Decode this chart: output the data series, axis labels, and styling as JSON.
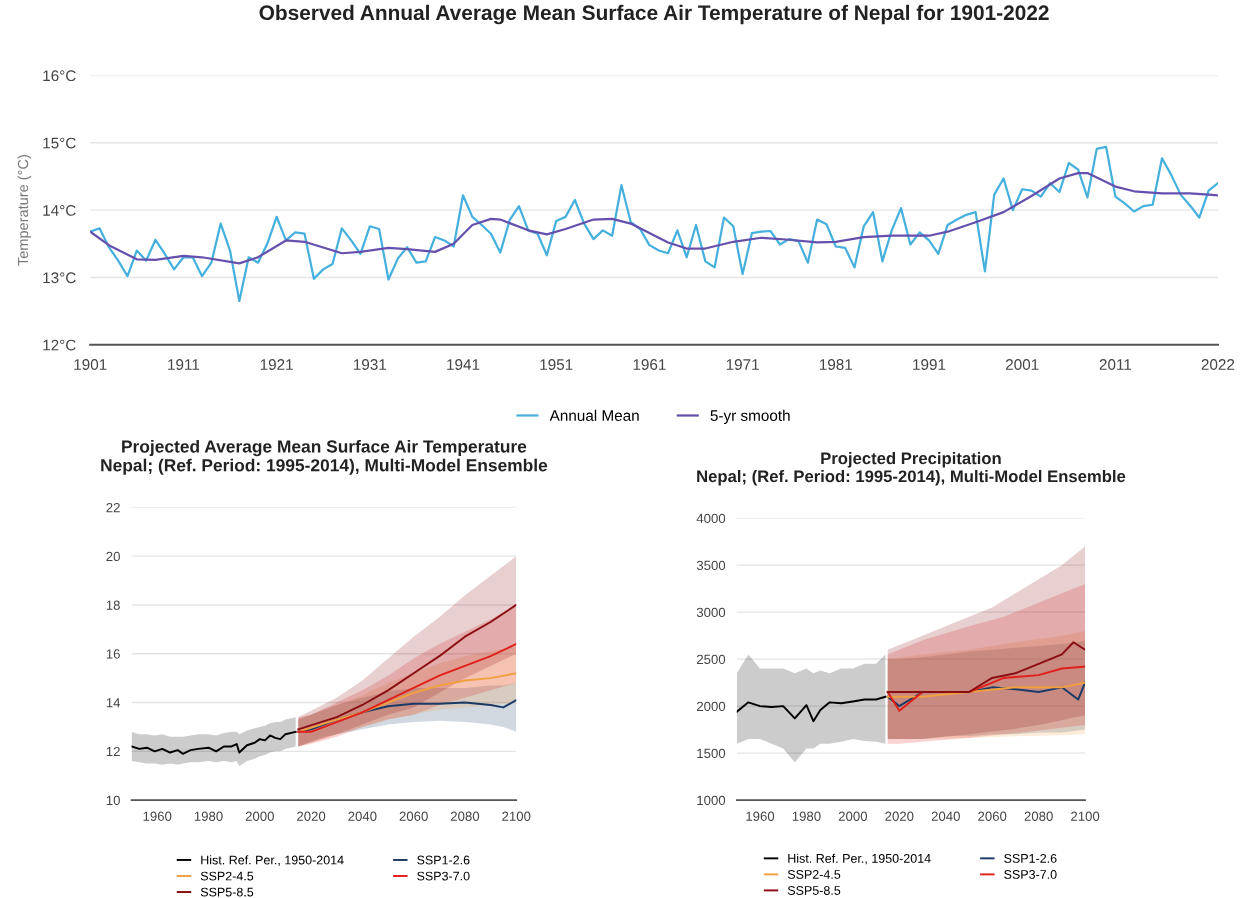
{
  "chart_data": [
    {
      "type": "line",
      "title": "Observed Annual Average Mean Surface Air Temperature of Nepal for 1901-2022",
      "ylabel": "Temperature (°C)",
      "x": [
        1901,
        1902,
        1903,
        1904,
        1905,
        1906,
        1907,
        1908,
        1909,
        1910,
        1911,
        1912,
        1913,
        1914,
        1915,
        1916,
        1917,
        1918,
        1919,
        1920,
        1921,
        1922,
        1923,
        1924,
        1925,
        1926,
        1927,
        1928,
        1929,
        1930,
        1931,
        1932,
        1933,
        1934,
        1935,
        1936,
        1937,
        1938,
        1939,
        1940,
        1941,
        1942,
        1943,
        1944,
        1945,
        1946,
        1947,
        1948,
        1949,
        1950,
        1951,
        1952,
        1953,
        1954,
        1955,
        1956,
        1957,
        1958,
        1959,
        1960,
        1961,
        1962,
        1963,
        1964,
        1965,
        1966,
        1967,
        1968,
        1969,
        1970,
        1971,
        1972,
        1973,
        1974,
        1975,
        1976,
        1977,
        1978,
        1979,
        1980,
        1981,
        1982,
        1983,
        1984,
        1985,
        1986,
        1987,
        1988,
        1989,
        1990,
        1991,
        1992,
        1993,
        1994,
        1995,
        1996,
        1997,
        1998,
        1999,
        2000,
        2001,
        2002,
        2003,
        2004,
        2005,
        2006,
        2007,
        2008,
        2009,
        2010,
        2011,
        2012,
        2013,
        2014,
        2015,
        2016,
        2017,
        2018,
        2019,
        2020,
        2021,
        2022
      ],
      "series": [
        {
          "name": "Annual Mean",
          "color": "#45b0dd",
          "values": [
            13.68,
            13.73,
            13.45,
            13.25,
            13.02,
            13.4,
            13.25,
            13.56,
            13.35,
            13.12,
            13.3,
            13.3,
            13.02,
            13.22,
            13.8,
            13.4,
            12.65,
            13.3,
            13.22,
            13.5,
            13.9,
            13.55,
            13.67,
            13.65,
            12.98,
            13.12,
            13.2,
            13.73,
            13.55,
            13.35,
            13.76,
            13.72,
            12.97,
            13.28,
            13.45,
            13.22,
            13.24,
            13.6,
            13.55,
            13.46,
            14.22,
            13.9,
            13.78,
            13.65,
            13.37,
            13.85,
            14.06,
            13.7,
            13.65,
            13.33,
            13.84,
            13.9,
            14.15,
            13.8,
            13.57,
            13.7,
            13.62,
            14.37,
            13.82,
            13.72,
            13.48,
            13.4,
            13.36,
            13.7,
            13.3,
            13.78,
            13.24,
            13.15,
            13.89,
            13.76,
            13.05,
            13.66,
            13.68,
            13.69,
            13.49,
            13.57,
            13.54,
            13.22,
            13.86,
            13.79,
            13.46,
            13.44,
            13.15,
            13.76,
            13.97,
            13.24,
            13.7,
            14.03,
            13.49,
            13.67,
            13.55,
            13.35,
            13.78,
            13.86,
            13.93,
            13.97,
            13.09,
            14.23,
            14.47,
            14.0,
            14.31,
            14.29,
            14.2,
            14.4,
            14.27,
            14.7,
            14.6,
            14.19,
            14.91,
            14.94,
            14.2,
            14.1,
            13.98,
            14.06,
            14.08,
            14.77,
            14.52,
            14.23,
            14.07,
            13.89,
            14.29,
            14.4
          ]
        },
        {
          "name": "5-yr smooth",
          "color": "#6650ae",
          "x": [
            1901,
            1903,
            1906,
            1908,
            1911,
            1913,
            1917,
            1919,
            1922,
            1924,
            1928,
            1930,
            1933,
            1935,
            1938,
            1940,
            1942,
            1944,
            1945,
            1948,
            1950,
            1952,
            1955,
            1957,
            1959,
            1961,
            1963,
            1965,
            1967,
            1970,
            1973,
            1976,
            1979,
            1981,
            1984,
            1987,
            1991,
            1993,
            1996,
            1999,
            2002,
            2005,
            2007,
            2008,
            2011,
            2013,
            2016,
            2019,
            2021,
            2022
          ],
          "values": [
            13.68,
            13.48,
            13.27,
            13.26,
            13.32,
            13.3,
            13.21,
            13.3,
            13.55,
            13.53,
            13.36,
            13.38,
            13.44,
            13.42,
            13.38,
            13.5,
            13.78,
            13.87,
            13.86,
            13.7,
            13.64,
            13.72,
            13.86,
            13.87,
            13.8,
            13.66,
            13.52,
            13.43,
            13.43,
            13.53,
            13.59,
            13.56,
            13.52,
            13.53,
            13.6,
            13.62,
            13.62,
            13.68,
            13.82,
            13.97,
            14.21,
            14.47,
            14.55,
            14.55,
            14.35,
            14.28,
            14.25,
            14.25,
            14.23,
            14.22
          ]
        }
      ],
      "xlim": [
        1901,
        2022
      ],
      "xticks": [
        1901,
        1911,
        1921,
        1931,
        1941,
        1951,
        1961,
        1971,
        1981,
        1991,
        2001,
        2011,
        2022
      ],
      "ylim": [
        12,
        16
      ],
      "yticks": [
        {
          "value": 12,
          "label": "12°C"
        },
        {
          "value": 13,
          "label": "13°C"
        },
        {
          "value": 14,
          "label": "14°C"
        },
        {
          "value": 15,
          "label": "15°C"
        },
        {
          "value": 16,
          "label": "16°C"
        }
      ],
      "grid": "y",
      "legend": "bottom"
    },
    {
      "type": "line",
      "title": "Projected Average Mean Surface Air Temperature\nNepal; (Ref. Period: 1995-2014), Multi-Model Ensemble",
      "series": [
        {
          "name": "Hist. Ref. Per., 1950-2014",
          "color": "#000000",
          "x": [
            1950,
            1953,
            1956,
            1959,
            1962,
            1965,
            1968,
            1970,
            1973,
            1976,
            1980,
            1983,
            1986,
            1989,
            1991,
            1992,
            1995,
            1998,
            2000,
            2002,
            2004,
            2006,
            2008,
            2010,
            2014
          ],
          "values": [
            12.2,
            12.1,
            12.15,
            12.0,
            12.1,
            11.95,
            12.05,
            11.9,
            12.05,
            12.1,
            12.15,
            12.0,
            12.2,
            12.2,
            12.3,
            11.95,
            12.25,
            12.35,
            12.5,
            12.45,
            12.65,
            12.55,
            12.5,
            12.7,
            12.8
          ],
          "lower": [
            11.6,
            11.55,
            11.5,
            11.5,
            11.45,
            11.5,
            11.45,
            11.5,
            11.55,
            11.55,
            11.6,
            11.55,
            11.6,
            11.55,
            11.6,
            11.4,
            11.6,
            11.7,
            11.8,
            11.85,
            11.95,
            12.0,
            12.0,
            12.1,
            12.2
          ],
          "upper": [
            12.8,
            12.7,
            12.7,
            12.65,
            12.7,
            12.6,
            12.6,
            12.6,
            12.65,
            12.7,
            12.7,
            12.65,
            12.75,
            12.8,
            12.8,
            12.7,
            12.85,
            12.95,
            13.0,
            13.05,
            13.15,
            13.2,
            13.2,
            13.3,
            13.4
          ]
        },
        {
          "name": "SSP1-2.6",
          "color": "#1c3a66",
          "x": [
            2015,
            2020,
            2025,
            2030,
            2040,
            2050,
            2060,
            2070,
            2080,
            2090,
            2095,
            2100
          ],
          "values": [
            12.8,
            12.9,
            13.1,
            13.3,
            13.6,
            13.85,
            13.95,
            13.95,
            14.0,
            13.9,
            13.8,
            14.1
          ],
          "lower": [
            12.2,
            12.4,
            12.6,
            12.7,
            12.9,
            13.1,
            13.2,
            13.25,
            13.2,
            13.1,
            13.0,
            12.8
          ],
          "upper": [
            13.3,
            13.5,
            13.7,
            13.9,
            14.2,
            14.45,
            14.6,
            14.6,
            14.6,
            14.7,
            14.7,
            14.8
          ]
        },
        {
          "name": "SSP2-4.5",
          "color": "#f0a040",
          "x": [
            2015,
            2030,
            2040,
            2050,
            2060,
            2070,
            2080,
            2090,
            2100
          ],
          "values": [
            12.8,
            13.3,
            13.6,
            14.0,
            14.4,
            14.7,
            14.9,
            15.0,
            15.2
          ],
          "lower": [
            12.2,
            12.7,
            13.0,
            13.3,
            13.5,
            13.7,
            13.8,
            13.9,
            14.0
          ],
          "upper": [
            13.3,
            13.9,
            14.3,
            14.8,
            15.2,
            15.6,
            15.9,
            16.1,
            16.3
          ]
        },
        {
          "name": "SSP3-7.0",
          "color": "#e0201a",
          "x": [
            2015,
            2020,
            2030,
            2040,
            2050,
            2060,
            2070,
            2080,
            2090,
            2100
          ],
          "values": [
            12.8,
            12.8,
            13.2,
            13.6,
            14.1,
            14.6,
            15.1,
            15.5,
            15.9,
            16.4
          ],
          "lower": [
            12.2,
            12.3,
            12.6,
            13.0,
            13.3,
            13.5,
            13.9,
            14.2,
            14.5,
            14.8
          ],
          "upper": [
            13.4,
            13.5,
            14.0,
            14.5,
            15.1,
            15.8,
            16.4,
            16.9,
            17.4,
            18.0
          ]
        },
        {
          "name": "SSP5-8.5",
          "color": "#8b0d12",
          "x": [
            2015,
            2030,
            2040,
            2050,
            2060,
            2070,
            2080,
            2090,
            2100
          ],
          "values": [
            12.9,
            13.4,
            13.9,
            14.5,
            15.2,
            15.9,
            16.7,
            17.3,
            18.0
          ],
          "lower": [
            12.2,
            12.7,
            13.1,
            13.5,
            13.8,
            14.4,
            15.0,
            15.5,
            16.0
          ],
          "upper": [
            13.4,
            14.2,
            14.9,
            15.8,
            16.7,
            17.5,
            18.4,
            19.2,
            20.0
          ]
        }
      ],
      "xlim": [
        1950,
        2100
      ],
      "xticks": [
        1960,
        1980,
        2000,
        2020,
        2040,
        2060,
        2080,
        2100
      ],
      "ylim": [
        10,
        22
      ],
      "yticks": [
        10,
        12,
        14,
        16,
        18,
        20,
        22
      ],
      "grid": "y",
      "legend": "bottom"
    },
    {
      "type": "line",
      "title": "Projected Precipitation\nNepal; (Ref. Period: 1995-2014), Multi-Model Ensemble",
      "series": [
        {
          "name": "Hist. Ref. Per., 1950-2014",
          "color": "#000000",
          "x": [
            1950,
            1955,
            1960,
            1965,
            1970,
            1975,
            1980,
            1983,
            1986,
            1990,
            1995,
            2000,
            2005,
            2010,
            2014
          ],
          "values": [
            1940,
            2040,
            2000,
            1990,
            2000,
            1870,
            2010,
            1840,
            1960,
            2040,
            2030,
            2050,
            2070,
            2070,
            2100
          ],
          "lower": [
            1600,
            1650,
            1650,
            1600,
            1550,
            1400,
            1550,
            1550,
            1600,
            1600,
            1620,
            1650,
            1630,
            1620,
            1600
          ],
          "upper": [
            2350,
            2550,
            2400,
            2400,
            2400,
            2350,
            2400,
            2350,
            2380,
            2350,
            2400,
            2400,
            2450,
            2450,
            2550
          ]
        },
        {
          "name": "SSP1-2.6",
          "color": "#1c3a66",
          "x": [
            2015,
            2020,
            2030,
            2040,
            2050,
            2060,
            2070,
            2080,
            2090,
            2097,
            2100
          ],
          "values": [
            2100,
            2000,
            2150,
            2150,
            2150,
            2200,
            2180,
            2150,
            2200,
            2070,
            2250
          ],
          "lower": [
            1650,
            1650,
            1650,
            1680,
            1680,
            1700,
            1700,
            1720,
            1720,
            1740,
            1750
          ],
          "upper": [
            2500,
            2500,
            2520,
            2550,
            2580,
            2600,
            2620,
            2640,
            2660,
            2680,
            2700
          ]
        },
        {
          "name": "SSP2-4.5",
          "color": "#f0a040",
          "x": [
            2015,
            2030,
            2050,
            2070,
            2090,
            2100
          ],
          "values": [
            2100,
            2100,
            2150,
            2200,
            2200,
            2250
          ],
          "lower": [
            1650,
            1650,
            1660,
            1680,
            1690,
            1700
          ],
          "upper": [
            2500,
            2550,
            2600,
            2680,
            2750,
            2800
          ]
        },
        {
          "name": "SSP3-7.0",
          "color": "#e0201a",
          "x": [
            2015,
            2020,
            2030,
            2050,
            2065,
            2080,
            2090,
            2100
          ],
          "values": [
            2150,
            1950,
            2150,
            2150,
            2300,
            2330,
            2400,
            2420
          ],
          "lower": [
            1600,
            1600,
            1620,
            1660,
            1700,
            1740,
            1770,
            1800
          ],
          "upper": [
            2550,
            2600,
            2700,
            2850,
            2950,
            3100,
            3200,
            3300
          ]
        },
        {
          "name": "SSP5-8.5",
          "color": "#8b0d12",
          "x": [
            2015,
            2030,
            2050,
            2060,
            2070,
            2080,
            2090,
            2095,
            2100
          ],
          "values": [
            2150,
            2150,
            2150,
            2300,
            2350,
            2450,
            2550,
            2680,
            2600
          ],
          "lower": [
            1650,
            1650,
            1700,
            1730,
            1760,
            1800,
            1850,
            1880,
            1900
          ],
          "upper": [
            2600,
            2750,
            2950,
            3050,
            3200,
            3350,
            3500,
            3600,
            3700
          ]
        }
      ],
      "xlim": [
        1950,
        2100
      ],
      "xticks": [
        1960,
        1980,
        2000,
        2020,
        2040,
        2060,
        2080,
        2100
      ],
      "ylim": [
        1000,
        4000
      ],
      "yticks": [
        1000,
        1500,
        2000,
        2500,
        3000,
        3500,
        4000
      ],
      "grid": "y",
      "legend": "bottom"
    }
  ]
}
